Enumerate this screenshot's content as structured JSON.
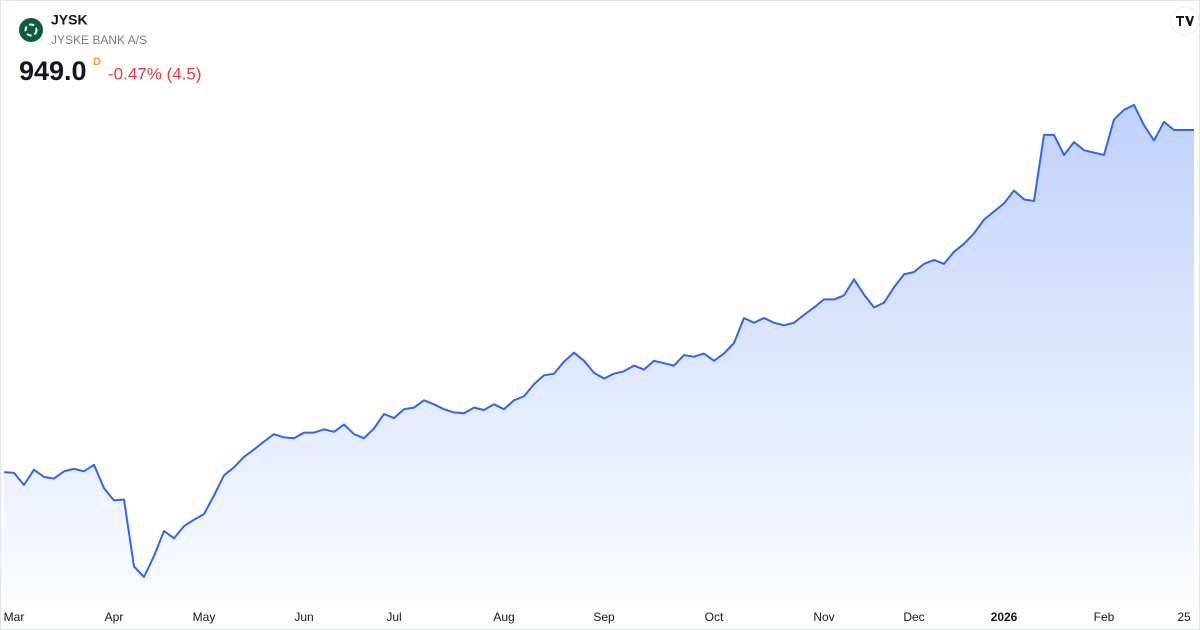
{
  "chart_data": {
    "type": "area",
    "title": "JYSK",
    "subtitle": "JYSKE BANK A/S",
    "price": "949.0",
    "interval": "D",
    "change": "-0.47% (4.5)",
    "color": "#2f66f0",
    "categories": [
      null,
      "Mar",
      null,
      null,
      null,
      null,
      null,
      null,
      null,
      null,
      null,
      "Apr",
      null,
      null,
      null,
      null,
      null,
      null,
      null,
      null,
      "May",
      null,
      null,
      null,
      null,
      null,
      null,
      null,
      null,
      null,
      "Jun",
      null,
      null,
      null,
      null,
      null,
      null,
      null,
      null,
      "Jul",
      null,
      null,
      null,
      null,
      null,
      null,
      null,
      null,
      null,
      null,
      "Aug",
      null,
      null,
      null,
      null,
      null,
      null,
      null,
      null,
      null,
      "Sep",
      null,
      null,
      null,
      null,
      null,
      null,
      null,
      null,
      null,
      null,
      "Oct",
      null,
      null,
      null,
      null,
      null,
      null,
      null,
      null,
      null,
      null,
      "Nov",
      null,
      null,
      null,
      null,
      null,
      null,
      null,
      null,
      "Dec",
      null,
      null,
      null,
      null,
      null,
      null,
      null,
      null,
      "2026",
      null,
      null,
      null,
      null,
      null,
      null,
      null,
      null,
      null,
      "Feb",
      null,
      null,
      null,
      null,
      null,
      null,
      null,
      "25",
      null
    ],
    "values": [
      525,
      524,
      509,
      528,
      519,
      517,
      526,
      529,
      526,
      534,
      505,
      490,
      491,
      408,
      395,
      421,
      452,
      443,
      458,
      466,
      473,
      496,
      521,
      531,
      544,
      553,
      563,
      572,
      568,
      567,
      574,
      574,
      578,
      575,
      584,
      572,
      567,
      579,
      597,
      592,
      603,
      605,
      614,
      609,
      603,
      599,
      598,
      605,
      602,
      609,
      603,
      614,
      619,
      634,
      645,
      647,
      662,
      673,
      663,
      648,
      641,
      647,
      650,
      657,
      652,
      663,
      660,
      657,
      670,
      668,
      672,
      663,
      672,
      685,
      716,
      710,
      716,
      710,
      707,
      710,
      720,
      729,
      739,
      739,
      744,
      764,
      745,
      729,
      735,
      754,
      770,
      773,
      783,
      788,
      783,
      798,
      808,
      821,
      838,
      848,
      858,
      874,
      863,
      861,
      943,
      943,
      918,
      934,
      924,
      921,
      918,
      962,
      974,
      980,
      955,
      936,
      959,
      949,
      949,
      949
    ]
  }
}
